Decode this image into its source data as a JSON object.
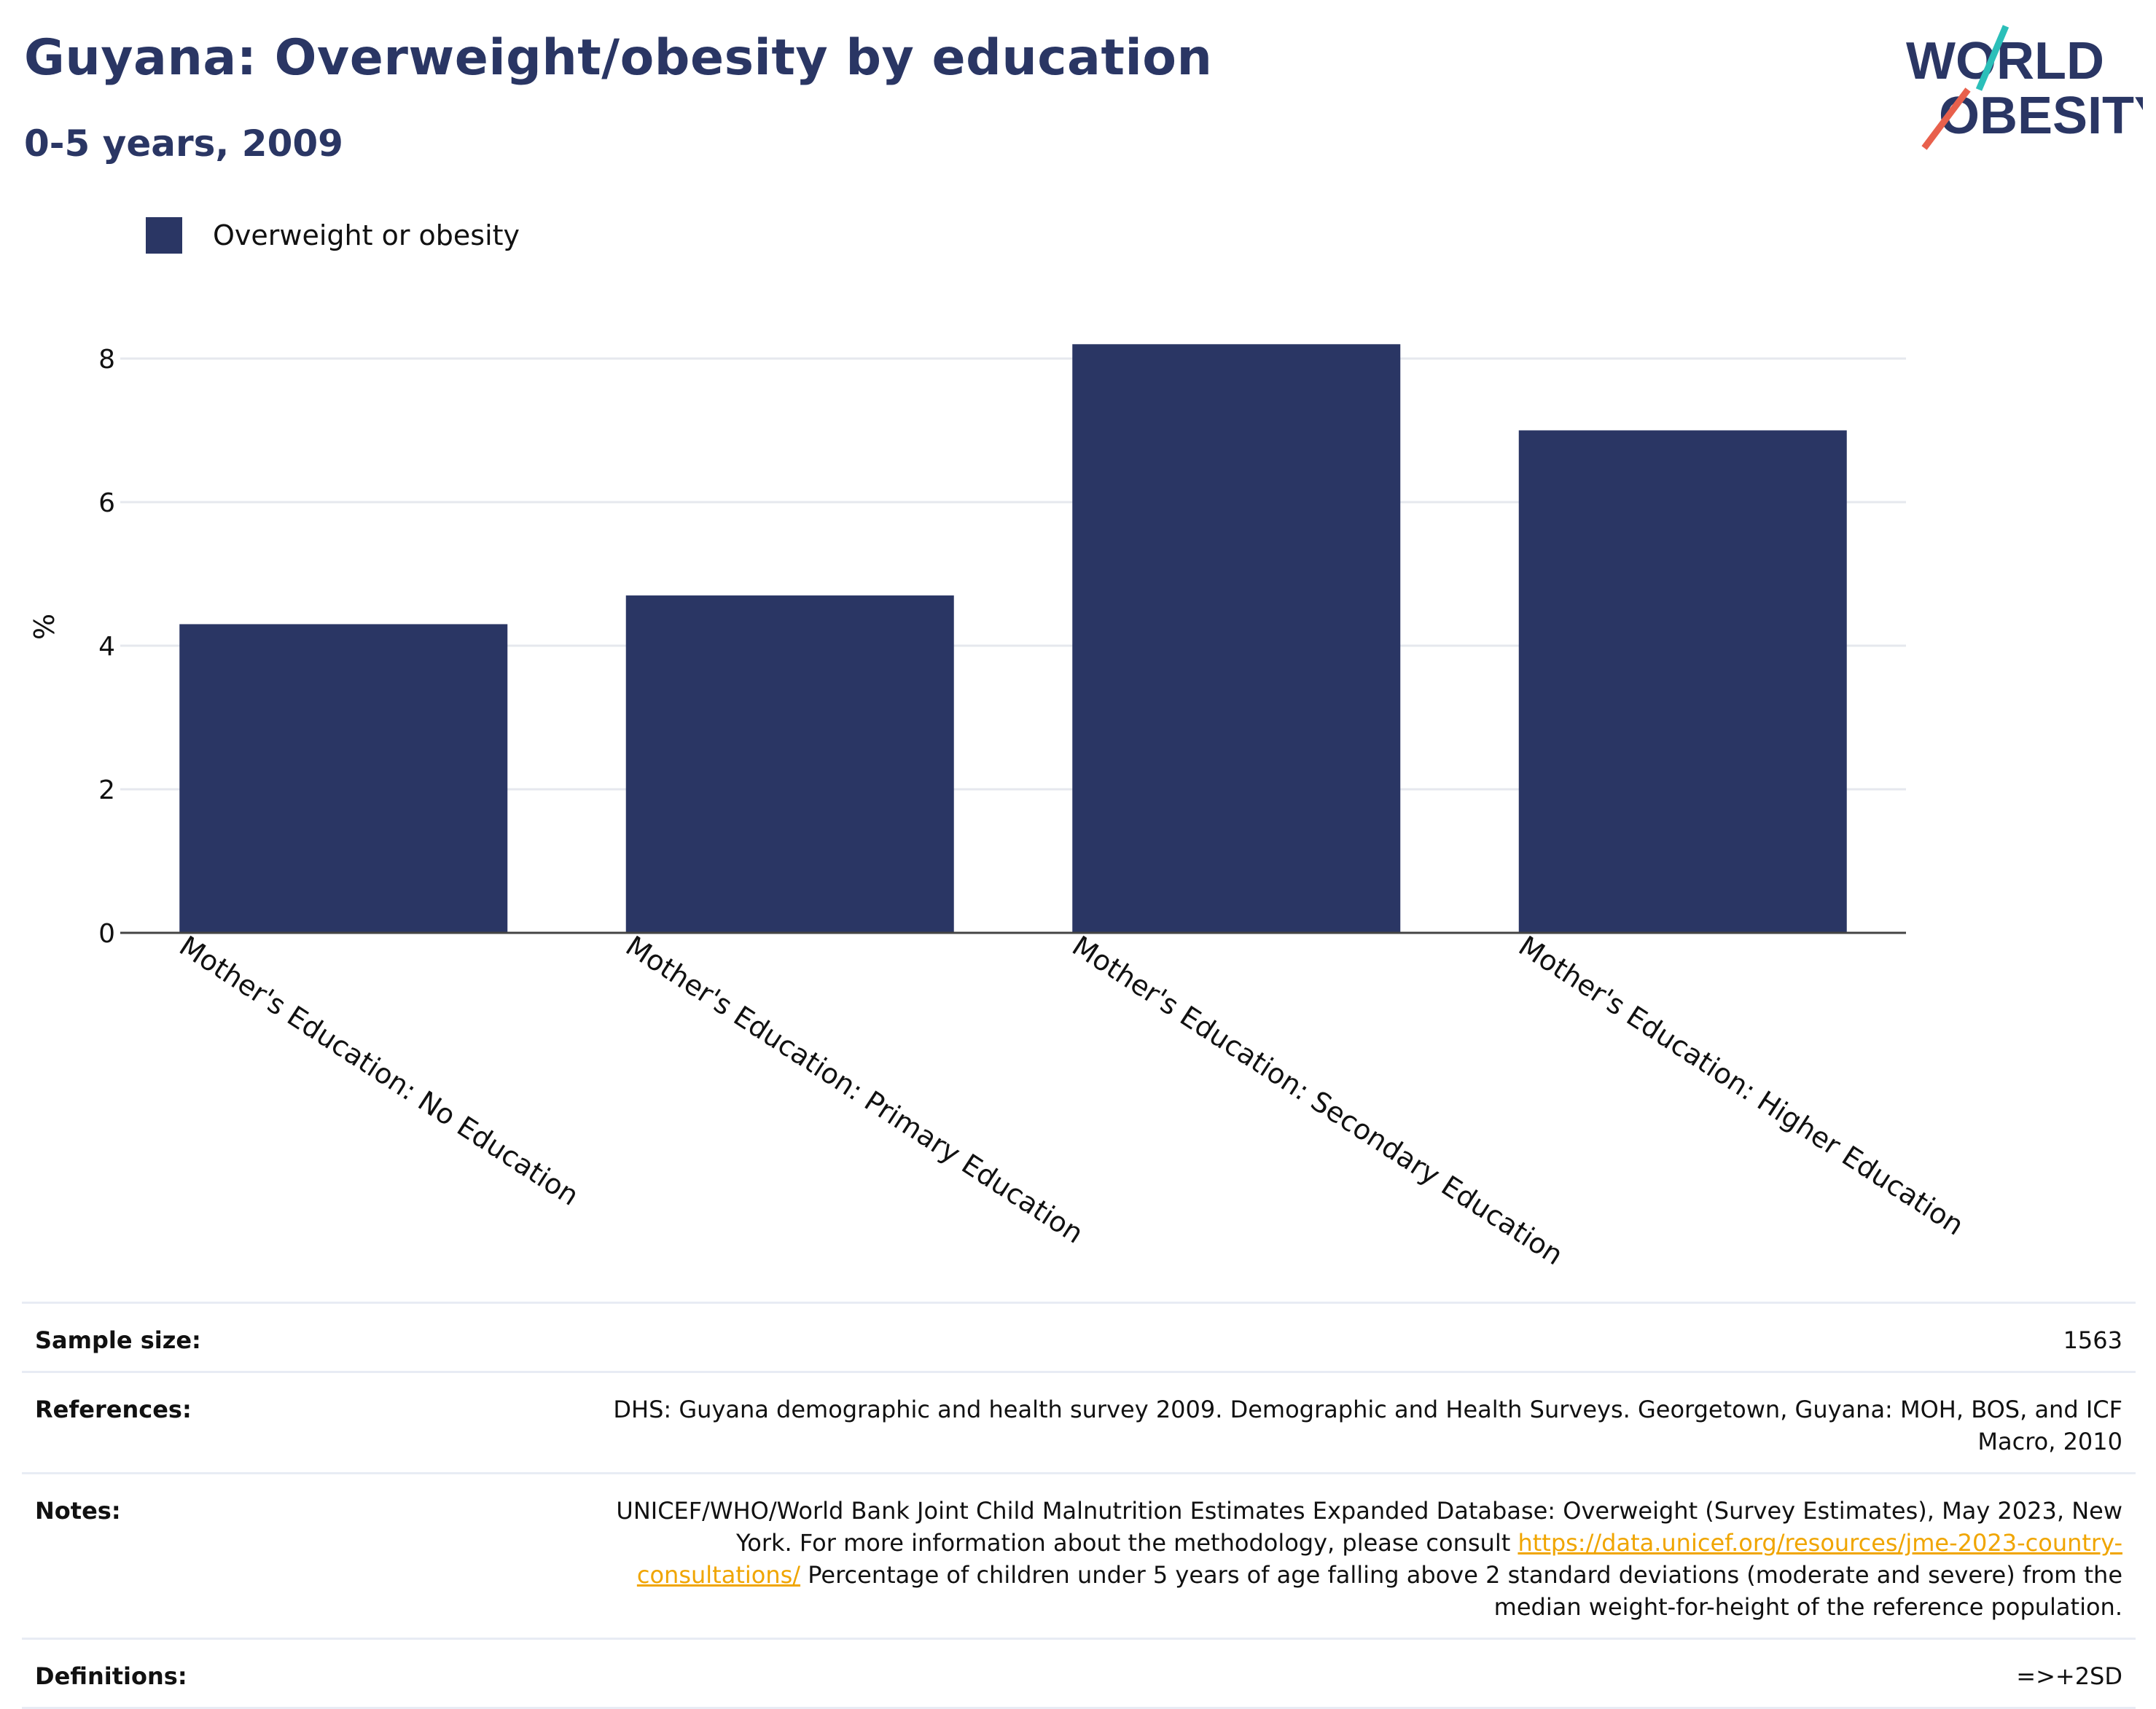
{
  "title": "Guyana: Overweight/obesity by education",
  "subtitle": "0-5 years, 2009",
  "logo": {
    "line1": "WORLD",
    "line2": "OBESITY"
  },
  "colors": {
    "bar": "#2a3664",
    "title": "#2a3664",
    "logo_teal": "#2bbfb9",
    "logo_coral": "#e8604c",
    "link": "#f0a500"
  },
  "legend": {
    "label": "Overweight or obesity"
  },
  "chart_data": {
    "type": "bar",
    "categories": [
      "Mother's Education: No Education",
      "Mother's Education: Primary Education",
      "Mother's Education: Secondary Education",
      "Mother's Education: Higher Education"
    ],
    "series": [
      {
        "name": "Overweight or obesity",
        "values": [
          4.3,
          4.7,
          8.2,
          7.0
        ]
      }
    ],
    "ylabel": "%",
    "yticks": [
      0,
      2,
      4,
      6,
      8
    ],
    "ylim": [
      0,
      8.2
    ],
    "grid": true,
    "legend_position": "top-left"
  },
  "footer": {
    "sample_size": {
      "label": "Sample size:",
      "value": "1563"
    },
    "references": {
      "label": "References:",
      "value": "DHS: Guyana demographic and health survey 2009. Demographic and Health Surveys. Georgetown, Guyana: MOH, BOS, and ICF Macro, 2010"
    },
    "notes": {
      "label": "Notes:",
      "text_before": "UNICEF/WHO/World Bank Joint Child Malnutrition Estimates Expanded Database: Overweight (Survey Estimates), May 2023, New York. For more information about the methodology, please consult ",
      "link": "https://data.unicef.org/resources/jme-2023-country-consultations/",
      "text_after": " Percentage of children under 5 years of age falling above 2 standard deviations (moderate and severe) from the median weight-for-height of the reference population."
    },
    "definitions": {
      "label": "Definitions:",
      "value": "=>+2SD"
    }
  }
}
